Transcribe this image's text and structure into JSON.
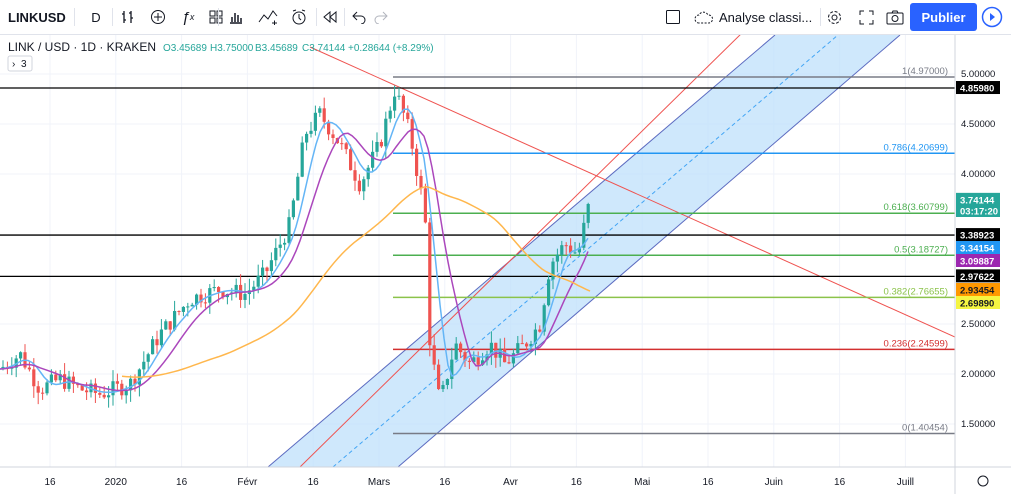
{
  "toolbar": {
    "symbol": "LINKUSD",
    "interval": "D",
    "layout_name": "Analyse classi...",
    "publish_label": "Publier"
  },
  "legend": {
    "title": "LINK / USD · 1D · KRAKEN",
    "open": "O3.45689",
    "high": "H3.75000",
    "low": "B3.45689",
    "close": "C3.74144",
    "change": "+0.28644 (+8.29%)",
    "indicators_count": "3"
  },
  "price_axis": {
    "ticks": [
      "5.00000",
      "4.50000",
      "4.00000",
      "2.50000",
      "2.00000",
      "1.50000"
    ],
    "labels": [
      {
        "text": "4.85980",
        "bg": "#000000",
        "fg": "#ffffff"
      },
      {
        "text": "3.74144",
        "bg": "#26a69a",
        "fg": "#ffffff"
      },
      {
        "text": "03:17:20",
        "bg": "#26a69a",
        "fg": "#ffffff"
      },
      {
        "text": "3.38923",
        "bg": "#000000",
        "fg": "#ffffff"
      },
      {
        "text": "3.34154",
        "bg": "#2196f3",
        "fg": "#ffffff"
      },
      {
        "text": "3.09887",
        "bg": "#9c27b0",
        "fg": "#ffffff"
      },
      {
        "text": "2.97622",
        "bg": "#000000",
        "fg": "#ffffff"
      },
      {
        "text": "2.93454",
        "bg": "#ff9800",
        "fg": "#131722"
      },
      {
        "text": "2.69890",
        "bg": "#f5f542",
        "fg": "#131722"
      }
    ]
  },
  "time_axis": {
    "ticks": [
      "16",
      "2020",
      "16",
      "Févr",
      "16",
      "Mars",
      "16",
      "Avr",
      "16",
      "Mai",
      "16",
      "Juin",
      "16",
      "Juill"
    ]
  },
  "fibonacci": [
    {
      "label": "1(4.97000)",
      "price": 4.97,
      "color": "#787b86"
    },
    {
      "label": "0.786(4.20699)",
      "price": 4.20699,
      "color": "#2196f3"
    },
    {
      "label": "0.618(3.60799)",
      "price": 3.60799,
      "color": "#4caf50"
    },
    {
      "label": "0.5(3.18727)",
      "price": 3.18727,
      "color": "#4caf50"
    },
    {
      "label": "0.382(2.76655)",
      "price": 2.76655,
      "color": "#8bc34a"
    },
    {
      "label": "0.236(2.24599)",
      "price": 2.24599,
      "color": "#d32f2f"
    },
    {
      "label": "0(1.40454)",
      "price": 1.40454,
      "color": "#787b86"
    }
  ],
  "horizontal_levels": [
    4.8598,
    3.38923,
    2.97622
  ],
  "colors": {
    "up": "#26a69a",
    "down": "#ef5350",
    "ma_fast": "#64b5f6",
    "ma_mid": "#ab47bc",
    "ma_slow": "#ffb74d",
    "channel": "#90caf9",
    "channel_line": "#5c6bc0",
    "trend": "#ef5350"
  },
  "icons": [
    "interval",
    "indicators-icon",
    "fx-icon",
    "templates-icon",
    "bar-style-icon",
    "compare-icon",
    "alert-icon",
    "replay-icon",
    "undo-icon",
    "redo-icon",
    "layout-icon",
    "cloud-icon",
    "settings-icon",
    "fullscreen-icon",
    "camera-icon",
    "play-icon"
  ]
}
